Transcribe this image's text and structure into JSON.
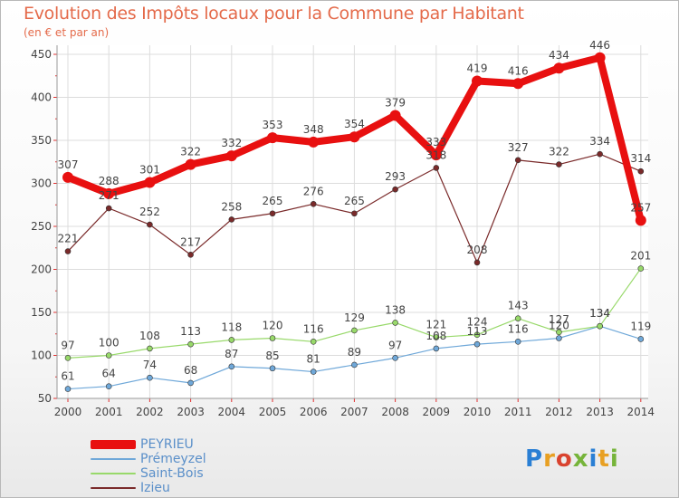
{
  "title": "Evolution des Impôts locaux pour la Commune par Habitant",
  "subtitle": "(en € et par an)",
  "brand": {
    "text": "Proxiti",
    "letter_colors": [
      "#2a7fd4",
      "#e8a023",
      "#d9432f",
      "#76b43a",
      "#2a7fd4",
      "#e8a023",
      "#76b43a"
    ]
  },
  "chart_data": {
    "type": "line",
    "title": "Evolution des Impôts locaux pour la Commune par Habitant",
    "subtitle": "(en € et par an)",
    "x": [
      "2000",
      "2001",
      "2002",
      "2003",
      "2004",
      "2005",
      "2006",
      "2007",
      "2008",
      "2009",
      "2010",
      "2011",
      "2012",
      "2013",
      "2014"
    ],
    "ylim": [
      50,
      450
    ],
    "yticks": [
      50,
      100,
      150,
      200,
      250,
      300,
      350,
      400,
      450
    ],
    "grid": true,
    "legend_position": "bottom-left",
    "series": [
      {
        "name": "PEYRIEU",
        "color": "#e81010",
        "values": [
          307,
          288,
          301,
          322,
          332,
          353,
          348,
          354,
          379,
          333,
          419,
          416,
          434,
          446,
          257
        ]
      },
      {
        "name": "Prémeyzel",
        "color": "#6fa8d9",
        "values": [
          61,
          64,
          74,
          68,
          87,
          85,
          81,
          89,
          97,
          108,
          113,
          116,
          120,
          134,
          119
        ]
      },
      {
        "name": "Saint-Bois",
        "color": "#98d96a",
        "values": [
          97,
          100,
          108,
          113,
          118,
          120,
          116,
          129,
          138,
          121,
          124,
          143,
          127,
          134,
          201
        ]
      },
      {
        "name": "Izieu",
        "color": "#7a2a2a",
        "values": [
          221,
          271,
          252,
          217,
          258,
          265,
          276,
          265,
          293,
          318,
          208,
          327,
          322,
          334,
          314
        ]
      }
    ]
  }
}
